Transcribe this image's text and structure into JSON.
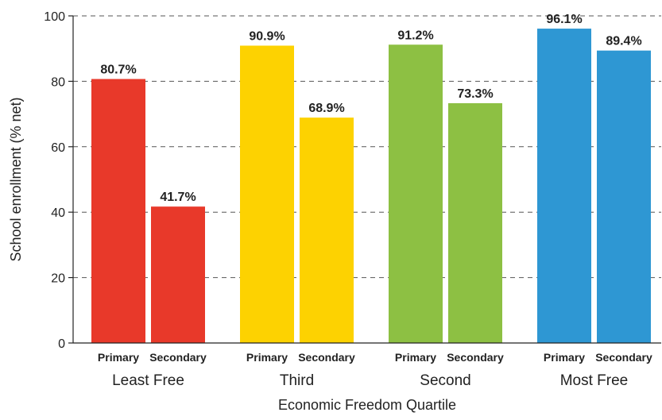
{
  "chart_data": {
    "type": "bar",
    "xlabel": "Economic Freedom Quartile",
    "ylabel": "School enrollment (% net)",
    "ylim": [
      0,
      100
    ],
    "yticks": [
      0,
      20,
      40,
      60,
      80,
      100
    ],
    "grid": true,
    "groups": [
      {
        "name": "Least Free",
        "color": "#E8392A",
        "bars": [
          {
            "label": "Primary",
            "value": 80.7,
            "display": "80.7%"
          },
          {
            "label": "Secondary",
            "value": 41.7,
            "display": "41.7%"
          }
        ]
      },
      {
        "name": "Third",
        "color": "#FDD201",
        "bars": [
          {
            "label": "Primary",
            "value": 90.9,
            "display": "90.9%"
          },
          {
            "label": "Secondary",
            "value": 68.9,
            "display": "68.9%"
          }
        ]
      },
      {
        "name": "Second",
        "color": "#8DC043",
        "bars": [
          {
            "label": "Primary",
            "value": 91.2,
            "display": "91.2%"
          },
          {
            "label": "Secondary",
            "value": 73.3,
            "display": "73.3%"
          }
        ]
      },
      {
        "name": "Most Free",
        "color": "#2E97D3",
        "bars": [
          {
            "label": "Primary",
            "value": 96.1,
            "display": "96.1%"
          },
          {
            "label": "Secondary",
            "value": 89.4,
            "display": "89.4%"
          }
        ]
      }
    ]
  }
}
